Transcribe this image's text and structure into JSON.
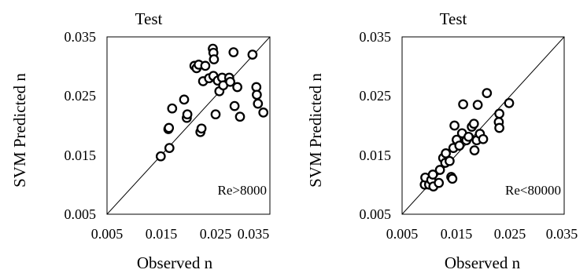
{
  "chart_data": [
    {
      "type": "scatter",
      "title": "Test",
      "xlabel": "Observed n",
      "ylabel": "SVM Predicted n",
      "xlim": [
        0.005,
        0.035
      ],
      "ylim": [
        0.005,
        0.035
      ],
      "xticks": [
        "0.005",
        "0.015",
        "0.025",
        "0.035"
      ],
      "yticks": [
        "0.005",
        "0.015",
        "0.025",
        "0.035"
      ],
      "annotation": "Re>8000",
      "reference_line": "y = x",
      "marker": "open-circle",
      "grid": false,
      "points": [
        [
          0.0149,
          0.0148
        ],
        [
          0.0165,
          0.0162
        ],
        [
          0.0163,
          0.0194
        ],
        [
          0.0164,
          0.0196
        ],
        [
          0.017,
          0.0229
        ],
        [
          0.0192,
          0.0244
        ],
        [
          0.0197,
          0.0213
        ],
        [
          0.0198,
          0.0219
        ],
        [
          0.0211,
          0.0301
        ],
        [
          0.0215,
          0.0297
        ],
        [
          0.0219,
          0.0303
        ],
        [
          0.0222,
          0.0189
        ],
        [
          0.0224,
          0.0195
        ],
        [
          0.0227,
          0.0275
        ],
        [
          0.0231,
          0.0301
        ],
        [
          0.0238,
          0.028
        ],
        [
          0.0245,
          0.033
        ],
        [
          0.0246,
          0.0323
        ],
        [
          0.0247,
          0.0312
        ],
        [
          0.0246,
          0.0284
        ],
        [
          0.025,
          0.0219
        ],
        [
          0.0254,
          0.0276
        ],
        [
          0.0257,
          0.0258
        ],
        [
          0.0262,
          0.0281
        ],
        [
          0.0264,
          0.0268
        ],
        [
          0.0275,
          0.0281
        ],
        [
          0.0277,
          0.0274
        ],
        [
          0.0283,
          0.0324
        ],
        [
          0.0285,
          0.0233
        ],
        [
          0.029,
          0.0265
        ],
        [
          0.0295,
          0.0215
        ],
        [
          0.0318,
          0.032
        ],
        [
          0.0325,
          0.0265
        ],
        [
          0.0326,
          0.0252
        ],
        [
          0.0328,
          0.0237
        ],
        [
          0.0338,
          0.0222
        ]
      ]
    },
    {
      "type": "scatter",
      "title": "Test",
      "xlabel": "Observed n",
      "ylabel": "SVM Predicted n",
      "xlim": [
        0.005,
        0.035
      ],
      "ylim": [
        0.005,
        0.035
      ],
      "xticks": [
        "0.005",
        "0.015",
        "0.025",
        "0.035"
      ],
      "yticks": [
        "0.005",
        "0.015",
        "0.025",
        "0.035"
      ],
      "annotation": "Re<80000",
      "reference_line": "y = x",
      "marker": "open-circle",
      "grid": false,
      "points": [
        [
          0.0092,
          0.01
        ],
        [
          0.0093,
          0.0112
        ],
        [
          0.01,
          0.01
        ],
        [
          0.0104,
          0.0108
        ],
        [
          0.0107,
          0.0117
        ],
        [
          0.0108,
          0.0097
        ],
        [
          0.0118,
          0.0103
        ],
        [
          0.012,
          0.0125
        ],
        [
          0.0126,
          0.0145
        ],
        [
          0.013,
          0.0137
        ],
        [
          0.0131,
          0.0153
        ],
        [
          0.0138,
          0.014
        ],
        [
          0.0141,
          0.0113
        ],
        [
          0.0143,
          0.011
        ],
        [
          0.0145,
          0.0162
        ],
        [
          0.0147,
          0.02
        ],
        [
          0.0151,
          0.0176
        ],
        [
          0.0156,
          0.0166
        ],
        [
          0.0161,
          0.0187
        ],
        [
          0.0163,
          0.0236
        ],
        [
          0.0169,
          0.0175
        ],
        [
          0.0173,
          0.0181
        ],
        [
          0.0179,
          0.0198
        ],
        [
          0.0183,
          0.0203
        ],
        [
          0.0184,
          0.0158
        ],
        [
          0.0188,
          0.0175
        ],
        [
          0.019,
          0.0235
        ],
        [
          0.0194,
          0.0186
        ],
        [
          0.02,
          0.0177
        ],
        [
          0.0207,
          0.0255
        ],
        [
          0.023,
          0.022
        ],
        [
          0.0229,
          0.0206
        ],
        [
          0.023,
          0.0196
        ],
        [
          0.0248,
          0.0238
        ]
      ]
    }
  ]
}
